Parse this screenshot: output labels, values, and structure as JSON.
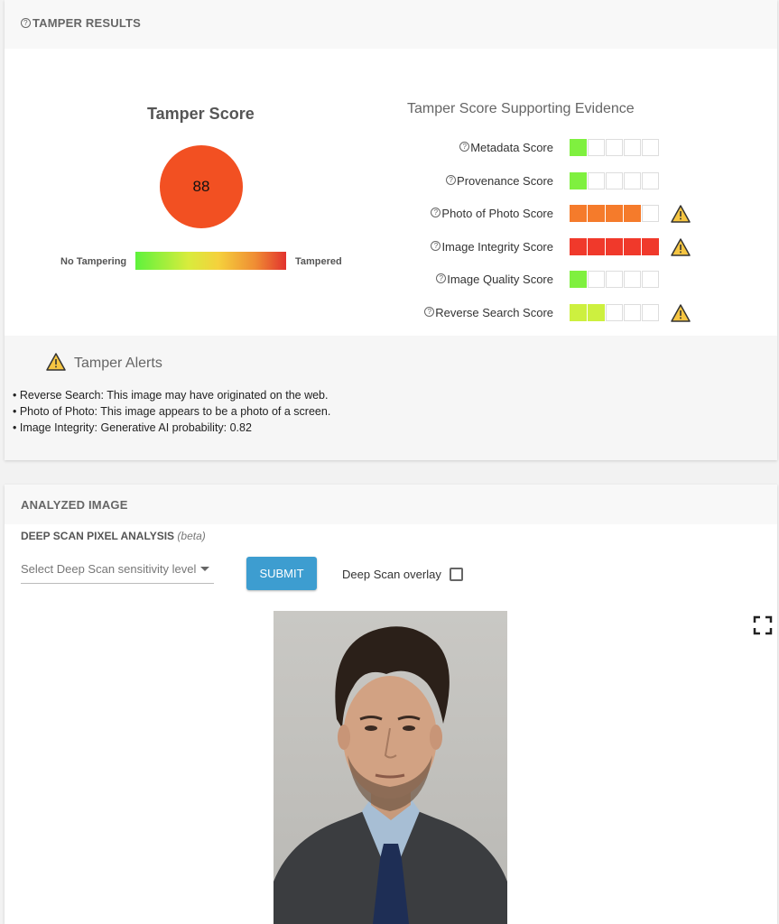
{
  "tamper_results": {
    "header": "TAMPER RESULTS",
    "score_title": "Tamper Score",
    "score_value": "88",
    "score_color": "#f25022",
    "scale_left_label": "No Tampering",
    "scale_right_label": "Tampered",
    "evidence_title": "Tamper Score Supporting Evidence",
    "evidence": [
      {
        "label": "Metadata Score",
        "filled": 1,
        "color": "#7ff03f",
        "warning": false
      },
      {
        "label": "Provenance Score",
        "filled": 1,
        "color": "#7ff03f",
        "warning": false
      },
      {
        "label": "Photo of Photo Score",
        "filled": 4,
        "color": "#f57b2b",
        "warning": true
      },
      {
        "label": "Image Integrity Score",
        "filled": 5,
        "color": "#f0392b",
        "warning": true
      },
      {
        "label": "Image Quality Score",
        "filled": 1,
        "color": "#7ff03f",
        "warning": false
      },
      {
        "label": "Reverse Search Score",
        "filled": 2,
        "color": "#cdf03f",
        "warning": true
      }
    ],
    "alerts_title": "Tamper Alerts",
    "alerts": [
      "• Reverse Search: This image may have originated on the web.",
      "• Photo of Photo: This image appears to be a photo of a screen.",
      "• Image Integrity: Generative AI probability: 0.82"
    ]
  },
  "analyzed_image": {
    "header": "ANALYZED IMAGE",
    "deep_scan_title": "DEEP SCAN PIXEL ANALYSIS",
    "deep_scan_beta": "(beta)",
    "select_placeholder": "Select Deep Scan sensitivity level",
    "submit_label": "SUBMIT",
    "overlay_label": "Deep Scan overlay",
    "overlay_checked": false
  }
}
